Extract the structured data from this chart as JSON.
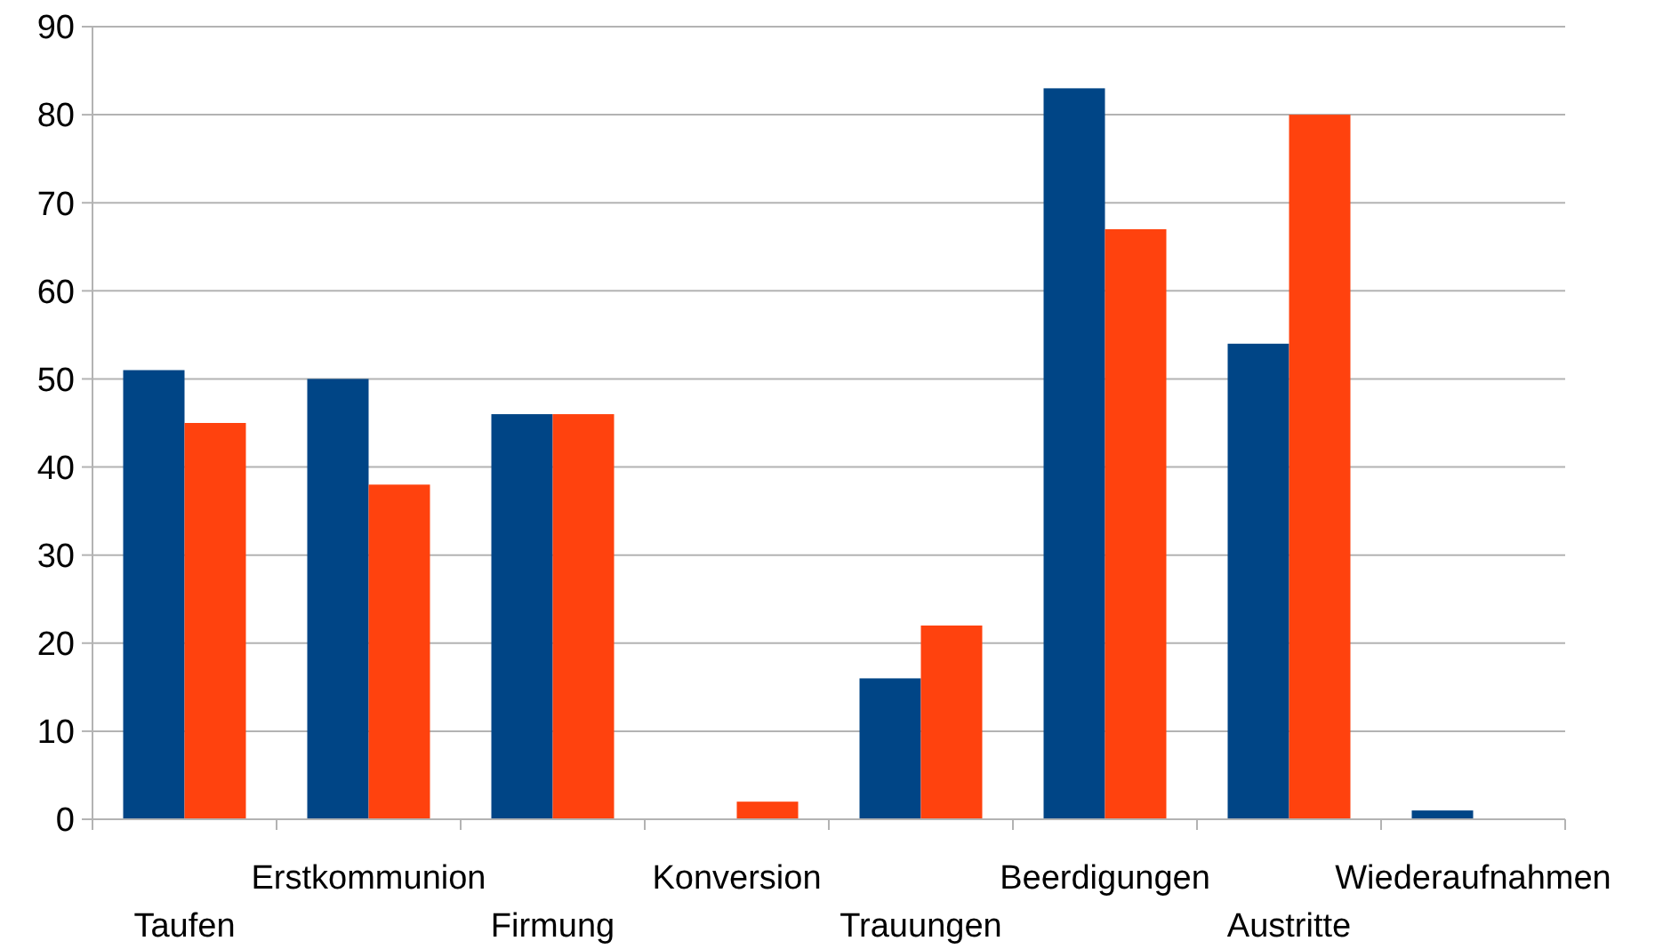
{
  "chart_data": {
    "type": "bar",
    "categories": [
      "Taufen",
      "Erstkommunion",
      "Firmung",
      "Konversion",
      "Trauungen",
      "Beerdigungen",
      "Austritte",
      "Wiederaufnahmen"
    ],
    "series": [
      {
        "color": "#004586",
        "values": [
          51,
          50,
          46,
          0,
          16,
          83,
          54,
          1
        ]
      },
      {
        "color": "#ff420e",
        "values": [
          45,
          38,
          46,
          2,
          22,
          67,
          80,
          0
        ]
      }
    ],
    "ylim": [
      0,
      90
    ],
    "yticks": [
      0,
      10,
      20,
      30,
      40,
      50,
      60,
      70,
      80,
      90
    ],
    "grid": "y"
  }
}
